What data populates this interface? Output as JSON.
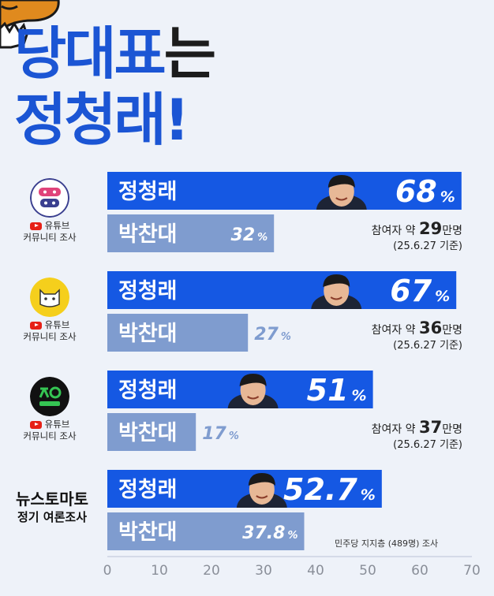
{
  "title": {
    "line1_blue": "당대표",
    "line1_dark": "는",
    "line2": "정청래!"
  },
  "chart_data": {
    "type": "bar",
    "orientation": "horizontal",
    "xlim": [
      0,
      70
    ],
    "xticks": [
      0,
      10,
      20,
      30,
      40,
      50,
      60,
      70
    ],
    "candidates": [
      "정청래",
      "박찬대"
    ],
    "colors": {
      "jung": "#1558e3",
      "park": "#7f9ccf"
    },
    "groups": [
      {
        "source_lines": [
          "유튜브",
          "커뮤니티 조사"
        ],
        "youtube": true,
        "logo": "chatda-politics-logo",
        "values": [
          68,
          32
        ],
        "labels": [
          "68",
          "32"
        ],
        "unit": "%",
        "note_prefix": "참여자 약 ",
        "note_number": "29",
        "note_suffix": "만명",
        "date": "(25.6.27 기준)"
      },
      {
        "source_lines": [
          "유튜브",
          "커뮤니티 조사"
        ],
        "youtube": true,
        "logo": "yellow-cat-logo",
        "values": [
          67,
          27
        ],
        "labels": [
          "67",
          "27"
        ],
        "unit": "%",
        "note_prefix": "참여자 약 ",
        "note_number": "36",
        "note_suffix": "만명",
        "date": "(25.6.27 기준)"
      },
      {
        "source_lines": [
          "유튜브",
          "커뮤니티 조사"
        ],
        "youtube": true,
        "logo": "jueo-news-logo",
        "values": [
          51,
          17
        ],
        "labels": [
          "51",
          "17"
        ],
        "unit": "%",
        "note_prefix": "참여자 약 ",
        "note_number": "37",
        "note_suffix": "만명",
        "date": "(25.6.27 기준)"
      },
      {
        "source_lines": [
          "뉴스토마토",
          "정기 여론조사"
        ],
        "youtube": false,
        "logo": "",
        "values": [
          52.7,
          37.8
        ],
        "labels": [
          "52.7",
          "37.8"
        ],
        "unit": "%",
        "footnote": "민주당 지지층 (489명) 조사"
      }
    ]
  }
}
